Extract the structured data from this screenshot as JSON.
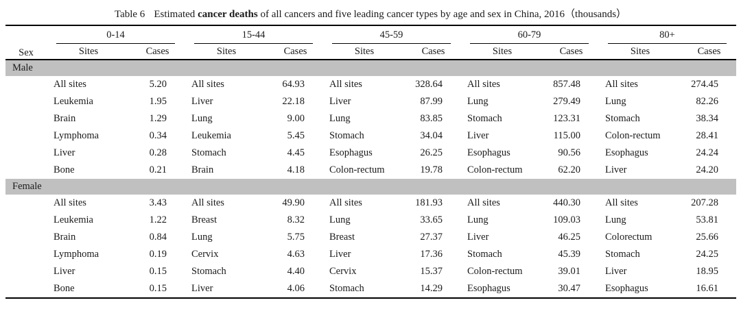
{
  "title": {
    "label": "Table 6",
    "pre": "Estimated ",
    "bold": "cancer deaths",
    "post": " of all cancers and five leading cancer types by age and sex in China, 2016（thousands）"
  },
  "header": {
    "sex_label": "Sex",
    "age_groups": [
      "0-14",
      "15-44",
      "45-59",
      "60-79",
      "80+"
    ],
    "sub_headers": [
      "Sites",
      "Cases"
    ]
  },
  "sections": [
    {
      "sex": "Male",
      "rows": [
        [
          [
            "All sites",
            "5.20"
          ],
          [
            "All sites",
            "64.93"
          ],
          [
            "All sites",
            "328.64"
          ],
          [
            "All sites",
            "857.48"
          ],
          [
            "All sites",
            "274.45"
          ]
        ],
        [
          [
            "Leukemia",
            "1.95"
          ],
          [
            "Liver",
            "22.18"
          ],
          [
            "Liver",
            "87.99"
          ],
          [
            "Lung",
            "279.49"
          ],
          [
            "Lung",
            "82.26"
          ]
        ],
        [
          [
            "Brain",
            "1.29"
          ],
          [
            "Lung",
            "9.00"
          ],
          [
            "Lung",
            "83.85"
          ],
          [
            "Stomach",
            "123.31"
          ],
          [
            "Stomach",
            "38.34"
          ]
        ],
        [
          [
            "Lymphoma",
            "0.34"
          ],
          [
            "Leukemia",
            "5.45"
          ],
          [
            "Stomach",
            "34.04"
          ],
          [
            "Liver",
            "115.00"
          ],
          [
            "Colon-rectum",
            "28.41"
          ]
        ],
        [
          [
            "Liver",
            "0.28"
          ],
          [
            "Stomach",
            "4.45"
          ],
          [
            "Esophagus",
            "26.25"
          ],
          [
            "Esophagus",
            "90.56"
          ],
          [
            "Esophagus",
            "24.24"
          ]
        ],
        [
          [
            "Bone",
            "0.21"
          ],
          [
            "Brain",
            "4.18"
          ],
          [
            "Colon-rectum",
            "19.78"
          ],
          [
            "Colon-rectum",
            "62.20"
          ],
          [
            "Liver",
            "24.20"
          ]
        ]
      ]
    },
    {
      "sex": "Female",
      "rows": [
        [
          [
            "All sites",
            "3.43"
          ],
          [
            "All sites",
            "49.90"
          ],
          [
            "All sites",
            "181.93"
          ],
          [
            "All sites",
            "440.30"
          ],
          [
            "All sites",
            "207.28"
          ]
        ],
        [
          [
            "Leukemia",
            "1.22"
          ],
          [
            "Breast",
            "8.32"
          ],
          [
            "Lung",
            "33.65"
          ],
          [
            "Lung",
            "109.03"
          ],
          [
            "Lung",
            "53.81"
          ]
        ],
        [
          [
            "Brain",
            "0.84"
          ],
          [
            "Lung",
            "5.75"
          ],
          [
            "Breast",
            "27.37"
          ],
          [
            "Liver",
            "46.25"
          ],
          [
            "Colorectum",
            "25.66"
          ]
        ],
        [
          [
            "Lymphoma",
            "0.19"
          ],
          [
            "Cervix",
            "4.63"
          ],
          [
            "Liver",
            "17.36"
          ],
          [
            "Stomach",
            "45.39"
          ],
          [
            "Stomach",
            "24.25"
          ]
        ],
        [
          [
            "Liver",
            "0.15"
          ],
          [
            "Stomach",
            "4.40"
          ],
          [
            "Cervix",
            "15.37"
          ],
          [
            "Colon-rectum",
            "39.01"
          ],
          [
            "Liver",
            "18.95"
          ]
        ],
        [
          [
            "Bone",
            "0.15"
          ],
          [
            "Liver",
            "4.06"
          ],
          [
            "Stomach",
            "14.29"
          ],
          [
            "Esophagus",
            "30.47"
          ],
          [
            "Esophagus",
            "16.61"
          ]
        ]
      ]
    }
  ],
  "colors": {
    "section_band": "#c0c0c0",
    "rule": "#000000",
    "background": "#ffffff",
    "text": "#1a1a1a"
  }
}
